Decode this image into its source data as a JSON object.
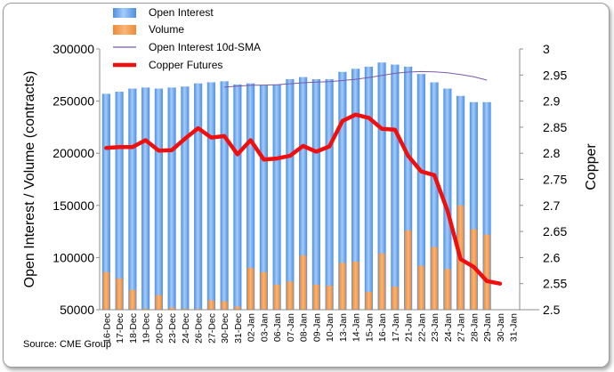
{
  "chart_data": {
    "type": "bar",
    "categories": [
      "16-Dec",
      "17-Dec",
      "18-Dec",
      "19-Dec",
      "20-Dec",
      "23-Dec",
      "24-Dec",
      "26-Dec",
      "27-Dec",
      "30-Dec",
      "31-Dec",
      "02-Jan",
      "03-Jan",
      "06-Jan",
      "07-Jan",
      "08-Jan",
      "09-Jan",
      "10-Jan",
      "13-Jan",
      "14-Jan",
      "15-Jan",
      "16-Jan",
      "17-Jan",
      "21-Jan",
      "22-Jan",
      "23-Jan",
      "24-Jan",
      "27-Jan",
      "28-Jan",
      "29-Jan",
      "30-Jan",
      "31-Jan"
    ],
    "series": [
      {
        "name": "Open Interest",
        "type": "bar",
        "axis": "left",
        "color": "#6aa9ee",
        "values": [
          257000,
          259000,
          262000,
          263000,
          262000,
          263000,
          264000,
          267000,
          268000,
          269000,
          266000,
          267000,
          265000,
          266000,
          271000,
          273000,
          271000,
          271000,
          278000,
          281000,
          283000,
          287000,
          285000,
          283000,
          276000,
          268000,
          262000,
          255000,
          249000,
          249000,
          null,
          null
        ]
      },
      {
        "name": "Volume",
        "type": "bar",
        "axis": "left",
        "color": "#f0943f",
        "values": [
          86000,
          80000,
          69000,
          51000,
          64000,
          52000,
          51000,
          51000,
          59000,
          58000,
          53000,
          90000,
          86000,
          74000,
          77000,
          102000,
          74000,
          73000,
          95000,
          96000,
          67000,
          104000,
          72000,
          126000,
          92000,
          110000,
          89000,
          150000,
          127000,
          122000,
          null,
          null
        ]
      },
      {
        "name": "Open Interest 10d-SMA",
        "type": "line",
        "axis": "left",
        "color": "#7a5aa8",
        "values": [
          null,
          null,
          null,
          null,
          null,
          null,
          null,
          null,
          null,
          263400,
          264300,
          265100,
          265400,
          265700,
          266600,
          267600,
          268300,
          268700,
          269700,
          270900,
          272600,
          274600,
          276600,
          277800,
          278300,
          278000,
          277100,
          275500,
          273300,
          270100,
          null,
          null
        ]
      },
      {
        "name": "Copper Futures",
        "type": "line",
        "axis": "right",
        "color": "#ef0f0f",
        "values": [
          2.81,
          2.812,
          2.812,
          2.825,
          2.805,
          2.806,
          2.828,
          2.848,
          2.83,
          2.833,
          2.798,
          2.825,
          2.788,
          2.79,
          2.795,
          2.814,
          2.803,
          2.813,
          2.862,
          2.874,
          2.868,
          2.847,
          2.845,
          2.795,
          2.765,
          2.758,
          2.69,
          2.597,
          2.582,
          2.555,
          2.55,
          null
        ]
      }
    ],
    "y_left": {
      "label": "Open Interest / Volume (contracts)",
      "min": 50000,
      "max": 300000,
      "ticks": [
        "50000",
        "100000",
        "150000",
        "200000",
        "250000",
        "300000"
      ]
    },
    "y_right": {
      "label": "Copper",
      "min": 2.5,
      "max": 3,
      "ticks": [
        "2.5",
        "2.55",
        "2.6",
        "2.65",
        "2.7",
        "2.75",
        "2.8",
        "2.85",
        "2.9",
        "2.95",
        "3"
      ]
    },
    "legend_placement": "top-left",
    "grid": false
  },
  "source": "Source: CME Group"
}
